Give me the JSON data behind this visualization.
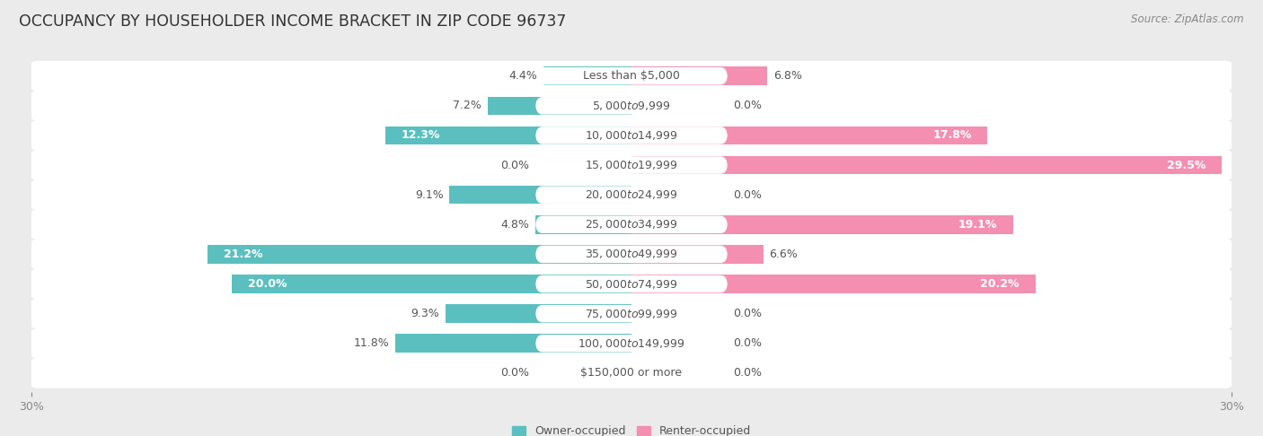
{
  "title": "OCCUPANCY BY HOUSEHOLDER INCOME BRACKET IN ZIP CODE 96737",
  "source": "Source: ZipAtlas.com",
  "categories": [
    "Less than $5,000",
    "$5,000 to $9,999",
    "$10,000 to $14,999",
    "$15,000 to $19,999",
    "$20,000 to $24,999",
    "$25,000 to $34,999",
    "$35,000 to $49,999",
    "$50,000 to $74,999",
    "$75,000 to $99,999",
    "$100,000 to $149,999",
    "$150,000 or more"
  ],
  "owner_values": [
    4.4,
    7.2,
    12.3,
    0.0,
    9.1,
    4.8,
    21.2,
    20.0,
    9.3,
    11.8,
    0.0
  ],
  "renter_values": [
    6.8,
    0.0,
    17.8,
    29.5,
    0.0,
    19.1,
    6.6,
    20.2,
    0.0,
    0.0,
    0.0
  ],
  "owner_color": "#5bbfbf",
  "renter_color": "#f48fb1",
  "axis_limit": 30.0,
  "background_color": "#ebebeb",
  "bar_background_color": "#ffffff",
  "bar_height": 0.62,
  "label_fontsize": 9.0,
  "title_fontsize": 12.5,
  "source_fontsize": 8.5,
  "legend_fontsize": 9.0,
  "axis_label_fontsize": 9.0,
  "value_label_large_threshold": 12.0,
  "category_pill_color": "#ffffff",
  "category_text_color": "#555555",
  "dark_value_color": "#555555",
  "white_value_color": "#ffffff"
}
